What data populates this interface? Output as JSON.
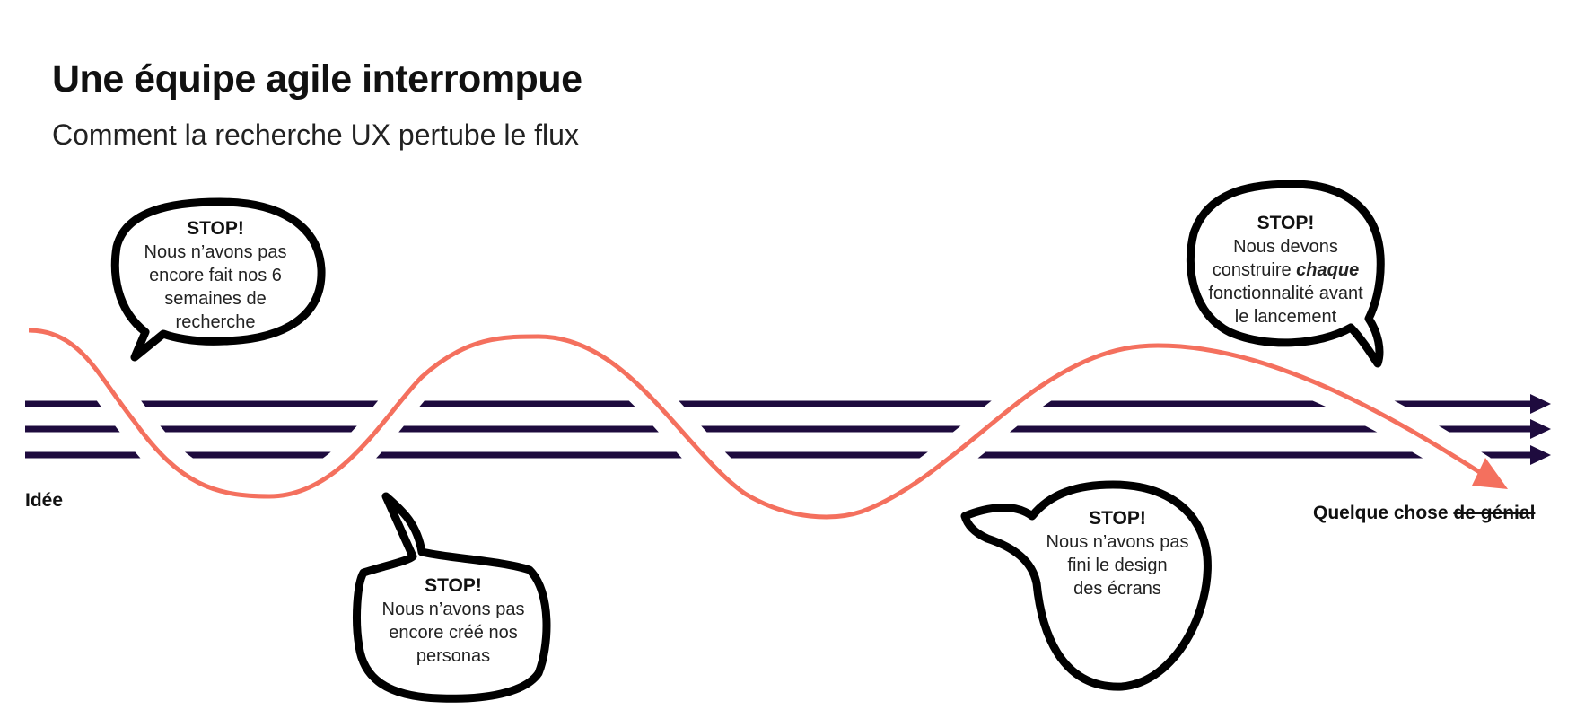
{
  "header": {
    "title": "Une équipe agile interrompue",
    "subtitle": "Comment la recherche UX pertube le flux"
  },
  "labels": {
    "start": "Idée",
    "end_plain": "Quelque chose ",
    "end_struck": "de génial"
  },
  "bubbles": [
    {
      "stop": "STOP!",
      "lines": [
        "Nous n’avons pas",
        "encore fait nos 6",
        "semaines de",
        "recherche"
      ]
    },
    {
      "stop": "STOP!",
      "lines": [
        "Nous n’avons pas",
        "encore créé nos",
        "personas"
      ]
    },
    {
      "stop": "STOP!",
      "lines": [
        "Nous n’avons pas",
        "fini le design",
        "des écrans"
      ]
    },
    {
      "stop": "STOP!",
      "line1": "Nous devons",
      "line2_pre": "construire ",
      "line2_em": "chaque",
      "line3": "fonctionnalité avant",
      "line4": "le lancement"
    }
  ],
  "colors": {
    "flow_lines": "#1e0b3e",
    "wave": "#f4705e",
    "bubble_outline": "#000000"
  },
  "icons": [
    "arrow-right-icon",
    "arrow-right-icon",
    "arrow-right-icon",
    "wave-arrow-icon"
  ]
}
